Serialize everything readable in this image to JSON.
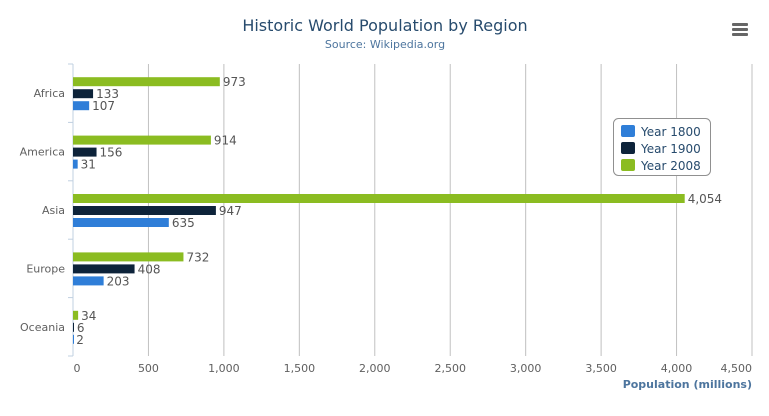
{
  "menu_icon": "hamburger-menu-icon",
  "chart_data": {
    "type": "bar",
    "orientation": "horizontal",
    "title": "Historic World Population by Region",
    "subtitle": "Source: Wikipedia.org",
    "xlabel": "",
    "ylabel": "Population (millions)",
    "categories": [
      "Africa",
      "America",
      "Asia",
      "Europe",
      "Oceania"
    ],
    "series": [
      {
        "name": "Year 1800",
        "color": "#2f7ed8",
        "values": [
          107,
          31,
          635,
          203,
          2
        ]
      },
      {
        "name": "Year 1900",
        "color": "#0d233a",
        "values": [
          133,
          156,
          947,
          408,
          6
        ]
      },
      {
        "name": "Year 2008",
        "color": "#8bbc21",
        "values": [
          973,
          914,
          4054,
          732,
          34
        ]
      }
    ],
    "value_axis": {
      "range": [
        0,
        4500
      ],
      "ticks": [
        "0",
        "500",
        "1,000",
        "1,500",
        "2,000",
        "2,500",
        "3,000",
        "3,500",
        "4,000",
        "4,500"
      ]
    },
    "data_labels": true,
    "grid": true,
    "legend_placement": "right"
  }
}
